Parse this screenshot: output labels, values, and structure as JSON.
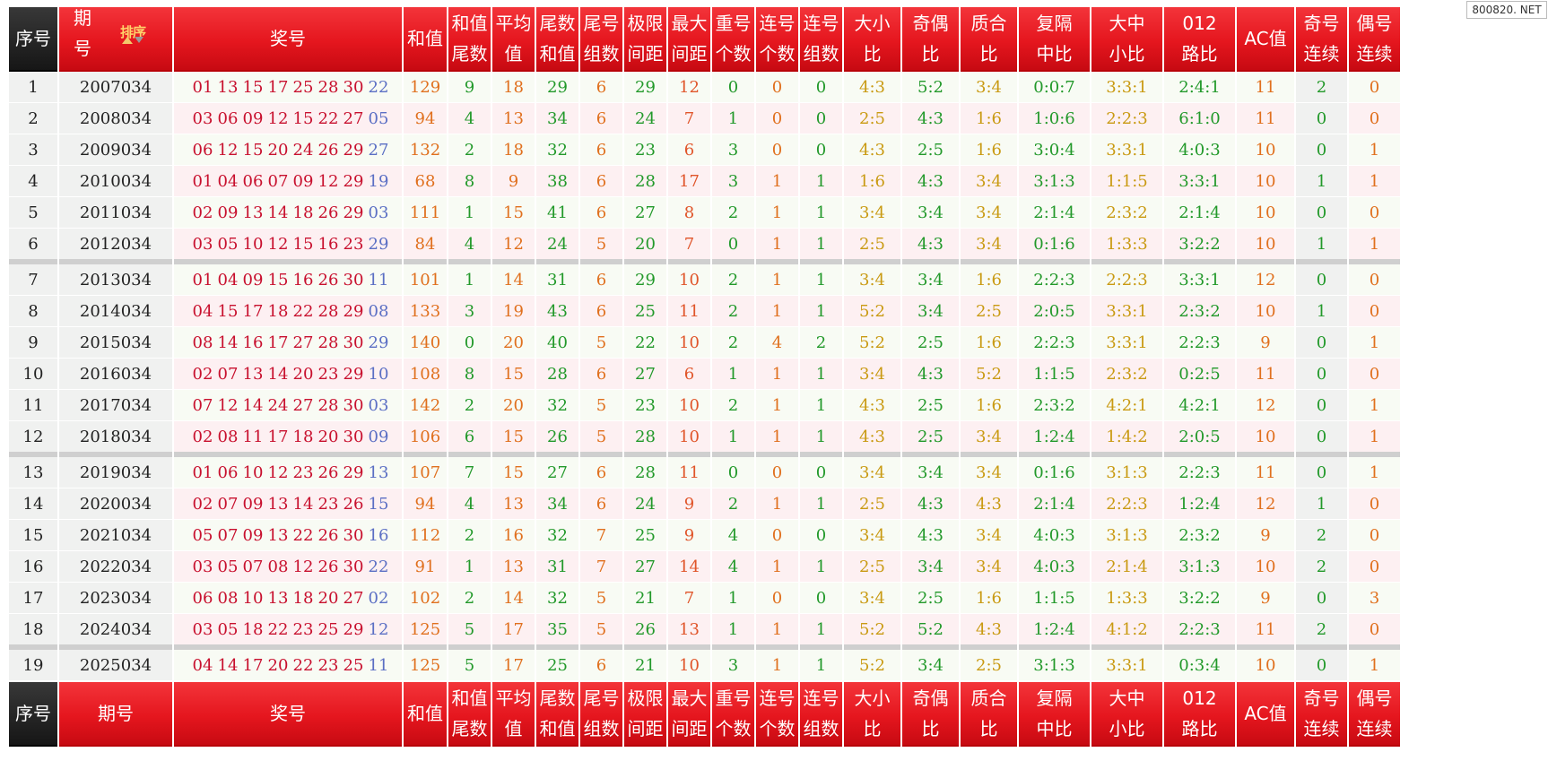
{
  "watermark": "800820. NET",
  "sort_label": "排序",
  "header": {
    "seq": "序号",
    "issue_line1": "期",
    "issue_line2": "号",
    "numbers": "奖号",
    "sum": "和值",
    "cols": [
      [
        "和值",
        "尾数"
      ],
      [
        "平均",
        "值"
      ],
      [
        "尾数",
        "和值"
      ],
      [
        "尾号",
        "组数"
      ],
      [
        "极限",
        "间距"
      ],
      [
        "最大",
        "间距"
      ],
      [
        "重号",
        "个数"
      ],
      [
        "连号",
        "个数"
      ],
      [
        "连号",
        "组数"
      ],
      [
        "大小",
        "比"
      ],
      [
        "奇偶",
        "比"
      ],
      [
        "质合",
        "比"
      ],
      [
        "复隔",
        "中比"
      ],
      [
        "大中",
        "小比"
      ],
      [
        "012",
        "路比"
      ]
    ],
    "ac": "AC值",
    "odd_consec": [
      "奇号",
      "连续"
    ],
    "even_consec": [
      "偶号",
      "连续"
    ]
  },
  "footer": {
    "seq": "序号",
    "issue": "期号",
    "numbers": "奖号",
    "sum": "和值",
    "cols": [
      [
        "和值",
        "尾数"
      ],
      [
        "平均",
        "值"
      ],
      [
        "尾数",
        "和值"
      ],
      [
        "尾号",
        "组数"
      ],
      [
        "极限",
        "间距"
      ],
      [
        "最大",
        "间距"
      ],
      [
        "重号",
        "个数"
      ],
      [
        "连号",
        "个数"
      ],
      [
        "连号",
        "组数"
      ],
      [
        "大小",
        "比"
      ],
      [
        "奇偶",
        "比"
      ],
      [
        "质合",
        "比"
      ],
      [
        "复隔",
        "中比"
      ],
      [
        "大中",
        "小比"
      ],
      [
        "012",
        "路比"
      ]
    ],
    "ac": "AC值",
    "odd_consec": [
      "奇号",
      "连续"
    ],
    "even_consec": [
      "偶号",
      "连续"
    ]
  },
  "rows": [
    {
      "idx": "1",
      "issue": "2007034",
      "reds": [
        "01",
        "13",
        "15",
        "17",
        "25",
        "28",
        "30"
      ],
      "blue": "22",
      "sum": "129",
      "sum_tail": "9",
      "avg": "18",
      "tail_sum": "29",
      "tail_groups": "6",
      "range": "29",
      "max_gap": "12",
      "repeat": "0",
      "consec_cnt": "0",
      "consec_grp": "0",
      "big_small": "4:3",
      "odd_even": "5:2",
      "prime_comp": "3:4",
      "fu_ge": "0:0:7",
      "dzx": "3:3:1",
      "road": "2:4:1",
      "ac": "11",
      "odd_run": "2",
      "even_run": "0"
    },
    {
      "idx": "2",
      "issue": "2008034",
      "reds": [
        "03",
        "06",
        "09",
        "12",
        "15",
        "22",
        "27"
      ],
      "blue": "05",
      "sum": "94",
      "sum_tail": "4",
      "avg": "13",
      "tail_sum": "34",
      "tail_groups": "6",
      "range": "24",
      "max_gap": "7",
      "repeat": "1",
      "consec_cnt": "0",
      "consec_grp": "0",
      "big_small": "2:5",
      "odd_even": "4:3",
      "prime_comp": "1:6",
      "fu_ge": "1:0:6",
      "dzx": "2:2:3",
      "road": "6:1:0",
      "ac": "11",
      "odd_run": "0",
      "even_run": "0"
    },
    {
      "idx": "3",
      "issue": "2009034",
      "reds": [
        "06",
        "12",
        "15",
        "20",
        "24",
        "26",
        "29"
      ],
      "blue": "27",
      "sum": "132",
      "sum_tail": "2",
      "avg": "18",
      "tail_sum": "32",
      "tail_groups": "6",
      "range": "23",
      "max_gap": "6",
      "repeat": "3",
      "consec_cnt": "0",
      "consec_grp": "0",
      "big_small": "4:3",
      "odd_even": "2:5",
      "prime_comp": "1:6",
      "fu_ge": "3:0:4",
      "dzx": "3:3:1",
      "road": "4:0:3",
      "ac": "10",
      "odd_run": "0",
      "even_run": "1"
    },
    {
      "idx": "4",
      "issue": "2010034",
      "reds": [
        "01",
        "04",
        "06",
        "07",
        "09",
        "12",
        "29"
      ],
      "blue": "19",
      "sum": "68",
      "sum_tail": "8",
      "avg": "9",
      "tail_sum": "38",
      "tail_groups": "6",
      "range": "28",
      "max_gap": "17",
      "repeat": "3",
      "consec_cnt": "1",
      "consec_grp": "1",
      "big_small": "1:6",
      "odd_even": "4:3",
      "prime_comp": "3:4",
      "fu_ge": "3:1:3",
      "dzx": "1:1:5",
      "road": "3:3:1",
      "ac": "10",
      "odd_run": "1",
      "even_run": "1"
    },
    {
      "idx": "5",
      "issue": "2011034",
      "reds": [
        "02",
        "09",
        "13",
        "14",
        "18",
        "26",
        "29"
      ],
      "blue": "03",
      "sum": "111",
      "sum_tail": "1",
      "avg": "15",
      "tail_sum": "41",
      "tail_groups": "6",
      "range": "27",
      "max_gap": "8",
      "repeat": "2",
      "consec_cnt": "1",
      "consec_grp": "1",
      "big_small": "3:4",
      "odd_even": "3:4",
      "prime_comp": "3:4",
      "fu_ge": "2:1:4",
      "dzx": "2:3:2",
      "road": "2:1:4",
      "ac": "10",
      "odd_run": "0",
      "even_run": "0"
    },
    {
      "idx": "6",
      "issue": "2012034",
      "reds": [
        "03",
        "05",
        "10",
        "12",
        "15",
        "16",
        "23"
      ],
      "blue": "29",
      "sum": "84",
      "sum_tail": "4",
      "avg": "12",
      "tail_sum": "24",
      "tail_groups": "5",
      "range": "20",
      "max_gap": "7",
      "repeat": "0",
      "consec_cnt": "1",
      "consec_grp": "1",
      "big_small": "2:5",
      "odd_even": "4:3",
      "prime_comp": "3:4",
      "fu_ge": "0:1:6",
      "dzx": "1:3:3",
      "road": "3:2:2",
      "ac": "10",
      "odd_run": "1",
      "even_run": "1"
    },
    {
      "idx": "7",
      "issue": "2013034",
      "reds": [
        "01",
        "04",
        "09",
        "15",
        "16",
        "26",
        "30"
      ],
      "blue": "11",
      "sum": "101",
      "sum_tail": "1",
      "avg": "14",
      "tail_sum": "31",
      "tail_groups": "6",
      "range": "29",
      "max_gap": "10",
      "repeat": "2",
      "consec_cnt": "1",
      "consec_grp": "1",
      "big_small": "3:4",
      "odd_even": "3:4",
      "prime_comp": "1:6",
      "fu_ge": "2:2:3",
      "dzx": "2:2:3",
      "road": "3:3:1",
      "ac": "12",
      "odd_run": "0",
      "even_run": "0"
    },
    {
      "idx": "8",
      "issue": "2014034",
      "reds": [
        "04",
        "15",
        "17",
        "18",
        "22",
        "28",
        "29"
      ],
      "blue": "08",
      "sum": "133",
      "sum_tail": "3",
      "avg": "19",
      "tail_sum": "43",
      "tail_groups": "6",
      "range": "25",
      "max_gap": "11",
      "repeat": "2",
      "consec_cnt": "1",
      "consec_grp": "1",
      "big_small": "5:2",
      "odd_even": "3:4",
      "prime_comp": "2:5",
      "fu_ge": "2:0:5",
      "dzx": "3:3:1",
      "road": "2:3:2",
      "ac": "10",
      "odd_run": "1",
      "even_run": "0"
    },
    {
      "idx": "9",
      "issue": "2015034",
      "reds": [
        "08",
        "14",
        "16",
        "17",
        "27",
        "28",
        "30"
      ],
      "blue": "29",
      "sum": "140",
      "sum_tail": "0",
      "avg": "20",
      "tail_sum": "40",
      "tail_groups": "5",
      "range": "22",
      "max_gap": "10",
      "repeat": "2",
      "consec_cnt": "4",
      "consec_grp": "2",
      "big_small": "5:2",
      "odd_even": "2:5",
      "prime_comp": "1:6",
      "fu_ge": "2:2:3",
      "dzx": "3:3:1",
      "road": "2:2:3",
      "ac": "9",
      "odd_run": "0",
      "even_run": "1"
    },
    {
      "idx": "10",
      "issue": "2016034",
      "reds": [
        "02",
        "07",
        "13",
        "14",
        "20",
        "23",
        "29"
      ],
      "blue": "10",
      "sum": "108",
      "sum_tail": "8",
      "avg": "15",
      "tail_sum": "28",
      "tail_groups": "6",
      "range": "27",
      "max_gap": "6",
      "repeat": "1",
      "consec_cnt": "1",
      "consec_grp": "1",
      "big_small": "3:4",
      "odd_even": "4:3",
      "prime_comp": "5:2",
      "fu_ge": "1:1:5",
      "dzx": "2:3:2",
      "road": "0:2:5",
      "ac": "11",
      "odd_run": "0",
      "even_run": "0"
    },
    {
      "idx": "11",
      "issue": "2017034",
      "reds": [
        "07",
        "12",
        "14",
        "24",
        "27",
        "28",
        "30"
      ],
      "blue": "03",
      "sum": "142",
      "sum_tail": "2",
      "avg": "20",
      "tail_sum": "32",
      "tail_groups": "5",
      "range": "23",
      "max_gap": "10",
      "repeat": "2",
      "consec_cnt": "1",
      "consec_grp": "1",
      "big_small": "4:3",
      "odd_even": "2:5",
      "prime_comp": "1:6",
      "fu_ge": "2:3:2",
      "dzx": "4:2:1",
      "road": "4:2:1",
      "ac": "12",
      "odd_run": "0",
      "even_run": "1"
    },
    {
      "idx": "12",
      "issue": "2018034",
      "reds": [
        "02",
        "08",
        "11",
        "17",
        "18",
        "20",
        "30"
      ],
      "blue": "09",
      "sum": "106",
      "sum_tail": "6",
      "avg": "15",
      "tail_sum": "26",
      "tail_groups": "5",
      "range": "28",
      "max_gap": "10",
      "repeat": "1",
      "consec_cnt": "1",
      "consec_grp": "1",
      "big_small": "4:3",
      "odd_even": "2:5",
      "prime_comp": "3:4",
      "fu_ge": "1:2:4",
      "dzx": "1:4:2",
      "road": "2:0:5",
      "ac": "10",
      "odd_run": "0",
      "even_run": "1"
    },
    {
      "idx": "13",
      "issue": "2019034",
      "reds": [
        "01",
        "06",
        "10",
        "12",
        "23",
        "26",
        "29"
      ],
      "blue": "13",
      "sum": "107",
      "sum_tail": "7",
      "avg": "15",
      "tail_sum": "27",
      "tail_groups": "6",
      "range": "28",
      "max_gap": "11",
      "repeat": "0",
      "consec_cnt": "0",
      "consec_grp": "0",
      "big_small": "3:4",
      "odd_even": "3:4",
      "prime_comp": "3:4",
      "fu_ge": "0:1:6",
      "dzx": "3:1:3",
      "road": "2:2:3",
      "ac": "11",
      "odd_run": "0",
      "even_run": "1"
    },
    {
      "idx": "14",
      "issue": "2020034",
      "reds": [
        "02",
        "07",
        "09",
        "13",
        "14",
        "23",
        "26"
      ],
      "blue": "15",
      "sum": "94",
      "sum_tail": "4",
      "avg": "13",
      "tail_sum": "34",
      "tail_groups": "6",
      "range": "24",
      "max_gap": "9",
      "repeat": "2",
      "consec_cnt": "1",
      "consec_grp": "1",
      "big_small": "2:5",
      "odd_even": "4:3",
      "prime_comp": "4:3",
      "fu_ge": "2:1:4",
      "dzx": "2:2:3",
      "road": "1:2:4",
      "ac": "12",
      "odd_run": "1",
      "even_run": "0"
    },
    {
      "idx": "15",
      "issue": "2021034",
      "reds": [
        "05",
        "07",
        "09",
        "13",
        "22",
        "26",
        "30"
      ],
      "blue": "16",
      "sum": "112",
      "sum_tail": "2",
      "avg": "16",
      "tail_sum": "32",
      "tail_groups": "7",
      "range": "25",
      "max_gap": "9",
      "repeat": "4",
      "consec_cnt": "0",
      "consec_grp": "0",
      "big_small": "3:4",
      "odd_even": "4:3",
      "prime_comp": "3:4",
      "fu_ge": "4:0:3",
      "dzx": "3:1:3",
      "road": "2:3:2",
      "ac": "9",
      "odd_run": "2",
      "even_run": "0"
    },
    {
      "idx": "16",
      "issue": "2022034",
      "reds": [
        "03",
        "05",
        "07",
        "08",
        "12",
        "26",
        "30"
      ],
      "blue": "22",
      "sum": "91",
      "sum_tail": "1",
      "avg": "13",
      "tail_sum": "31",
      "tail_groups": "7",
      "range": "27",
      "max_gap": "14",
      "repeat": "4",
      "consec_cnt": "1",
      "consec_grp": "1",
      "big_small": "2:5",
      "odd_even": "3:4",
      "prime_comp": "3:4",
      "fu_ge": "4:0:3",
      "dzx": "2:1:4",
      "road": "3:1:3",
      "ac": "10",
      "odd_run": "2",
      "even_run": "0"
    },
    {
      "idx": "17",
      "issue": "2023034",
      "reds": [
        "06",
        "08",
        "10",
        "13",
        "18",
        "20",
        "27"
      ],
      "blue": "02",
      "sum": "102",
      "sum_tail": "2",
      "avg": "14",
      "tail_sum": "32",
      "tail_groups": "5",
      "range": "21",
      "max_gap": "7",
      "repeat": "1",
      "consec_cnt": "0",
      "consec_grp": "0",
      "big_small": "3:4",
      "odd_even": "2:5",
      "prime_comp": "1:6",
      "fu_ge": "1:1:5",
      "dzx": "1:3:3",
      "road": "3:2:2",
      "ac": "9",
      "odd_run": "0",
      "even_run": "3"
    },
    {
      "idx": "18",
      "issue": "2024034",
      "reds": [
        "03",
        "05",
        "18",
        "22",
        "23",
        "25",
        "29"
      ],
      "blue": "12",
      "sum": "125",
      "sum_tail": "5",
      "avg": "17",
      "tail_sum": "35",
      "tail_groups": "5",
      "range": "26",
      "max_gap": "13",
      "repeat": "1",
      "consec_cnt": "1",
      "consec_grp": "1",
      "big_small": "5:2",
      "odd_even": "5:2",
      "prime_comp": "4:3",
      "fu_ge": "1:2:4",
      "dzx": "4:1:2",
      "road": "2:2:3",
      "ac": "11",
      "odd_run": "2",
      "even_run": "0"
    },
    {
      "idx": "19",
      "issue": "2025034",
      "reds": [
        "04",
        "14",
        "17",
        "20",
        "22",
        "23",
        "25"
      ],
      "blue": "11",
      "sum": "125",
      "sum_tail": "5",
      "avg": "17",
      "tail_sum": "25",
      "tail_groups": "6",
      "range": "21",
      "max_gap": "10",
      "repeat": "3",
      "consec_cnt": "1",
      "consec_grp": "1",
      "big_small": "5:2",
      "odd_even": "3:4",
      "prime_comp": "2:5",
      "fu_ge": "3:1:3",
      "dzx": "3:3:1",
      "road": "0:3:4",
      "ac": "10",
      "odd_run": "0",
      "even_run": "1"
    }
  ]
}
